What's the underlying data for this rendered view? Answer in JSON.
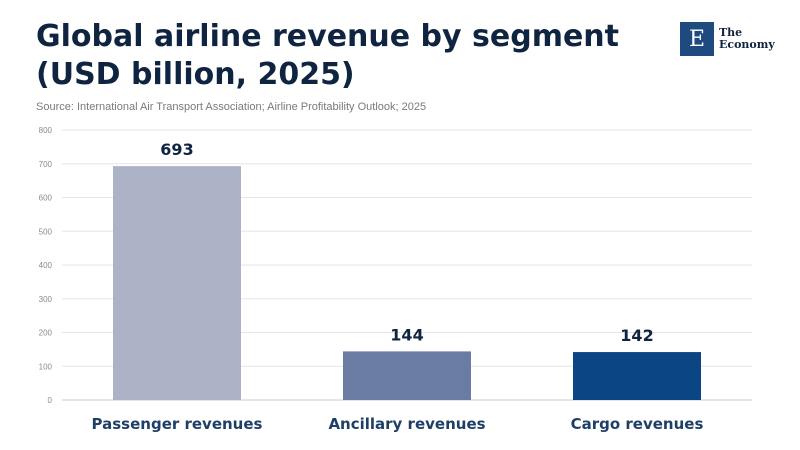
{
  "header": {
    "title": "Global airline revenue by segment (USD billion, 2025)",
    "source": "Source: International Air Transport Association; Airline Profitability Outlook; 2025"
  },
  "logo": {
    "mark": "E",
    "line1": "The",
    "line2": "Economy"
  },
  "colors": {
    "title": "#0f2440",
    "bars": [
      "#adb3c6",
      "#6b7ca3",
      "#0c4583"
    ],
    "grid": "#e6e6e6"
  },
  "chart_data": {
    "type": "bar",
    "title": "Global airline revenue by segment (USD billion, 2025)",
    "xlabel": "",
    "ylabel": "",
    "categories": [
      "Passenger revenues",
      "Ancillary revenues",
      "Cargo revenues"
    ],
    "values": [
      693,
      144,
      142
    ],
    "value_labels": [
      "693",
      "144",
      "142"
    ],
    "ylim": [
      0,
      800
    ],
    "yticks": [
      0,
      100,
      200,
      300,
      400,
      500,
      600,
      700,
      800
    ],
    "ytick_labels": [
      "0",
      "100",
      "200",
      "300",
      "400",
      "500",
      "600",
      "700",
      "800"
    ],
    "grid": true,
    "legend": "none"
  }
}
